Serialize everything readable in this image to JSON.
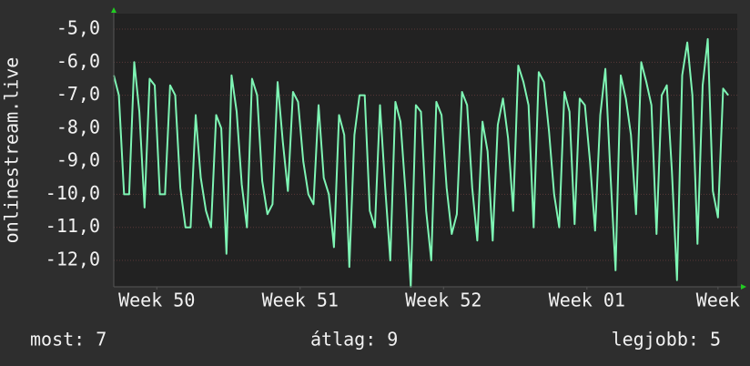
{
  "chart_data": {
    "type": "line",
    "y_label": "onlinestream.live",
    "x": [
      0,
      0.25,
      0.5,
      0.75,
      1,
      1.25,
      1.5,
      1.75,
      2,
      2.25,
      2.5,
      2.75,
      3,
      3.25,
      3.5,
      3.75,
      4,
      4.25,
      4.5,
      4.75,
      5,
      5.25,
      5.5,
      5.75,
      6,
      6.25,
      6.5,
      6.75,
      7,
      7.25,
      7.5,
      7.75,
      8,
      8.25,
      8.5,
      8.75,
      9,
      9.25,
      9.5,
      9.75,
      10,
      10.25,
      10.5,
      10.75,
      11,
      11.25,
      11.5,
      11.75,
      12,
      12.25,
      12.5,
      12.75,
      13,
      13.25,
      13.5,
      13.75,
      14,
      14.25,
      14.5,
      14.75,
      15,
      15.25,
      15.5,
      15.75,
      16,
      16.25,
      16.5,
      16.75,
      17,
      17.25,
      17.5,
      17.75,
      18,
      18.25,
      18.5,
      18.75,
      19,
      19.25,
      19.5,
      19.75,
      20,
      20.25,
      20.5,
      20.75,
      21,
      21.25,
      21.5,
      21.75,
      22,
      22.25,
      22.5,
      22.75,
      23,
      23.25,
      23.5,
      23.75,
      24,
      24.25,
      24.5,
      24.75,
      25,
      25.25,
      25.5,
      25.75,
      26,
      26.25,
      26.5,
      26.75,
      27,
      27.25,
      27.5,
      27.75,
      28,
      28.25,
      28.5,
      28.75,
      29,
      29.25,
      29.5,
      29.75,
      30
    ],
    "series": [
      {
        "color": "#7ef5b4",
        "values": [
          -6.4,
          -7,
          -10,
          -10,
          -6,
          -7.5,
          -10.4,
          -6.5,
          -6.7,
          -10,
          -10,
          -6.7,
          -7,
          -9.8,
          -11,
          -11,
          -7.6,
          -9.5,
          -10.5,
          -11,
          -7.6,
          -8,
          -11.8,
          -6.4,
          -7.5,
          -9.7,
          -11,
          -6.5,
          -7,
          -9.6,
          -10.6,
          -10.3,
          -6.6,
          -8.4,
          -9.9,
          -6.9,
          -7.2,
          -9,
          -10,
          -10.3,
          -7.3,
          -9.5,
          -10,
          -11.6,
          -7.6,
          -8.2,
          -12.2,
          -8.2,
          -7,
          -7,
          -10.5,
          -11,
          -7.3,
          -9.8,
          -12,
          -7.2,
          -7.8,
          -10,
          -12.8,
          -7.3,
          -7.5,
          -10.5,
          -12,
          -7.2,
          -7.6,
          -9.8,
          -11.2,
          -10.6,
          -6.9,
          -7.3,
          -9.8,
          -11.4,
          -7.8,
          -8.7,
          -11.4,
          -7.9,
          -7.1,
          -8.3,
          -10.5,
          -6.1,
          -6.6,
          -7.3,
          -11,
          -6.3,
          -6.6,
          -8.1,
          -10,
          -11,
          -6.9,
          -7.5,
          -10.9,
          -7.1,
          -7.3,
          -9,
          -11.1,
          -7.6,
          -6.2,
          -9.4,
          -12.3,
          -6.4,
          -7.1,
          -8.2,
          -10.6,
          -6,
          -6.6,
          -7.3,
          -11.2,
          -7,
          -6.7,
          -9.3,
          -12.6,
          -6.4,
          -5.4,
          -7,
          -11.5,
          -6.7,
          -5.3,
          -9.9,
          -10.7,
          -6.8,
          -7
        ]
      }
    ],
    "xlim": [
      0,
      30.44
    ],
    "xticks": [
      {
        "value": 2.1,
        "label": "Week 50"
      },
      {
        "value": 9.1,
        "label": "Week 51"
      },
      {
        "value": 16.1,
        "label": "Week 52"
      },
      {
        "value": 23.1,
        "label": "Week 01"
      },
      {
        "value": 29.5,
        "label": "Week"
      }
    ],
    "ylim": [
      -12.8,
      -4.53
    ],
    "yticks": [
      {
        "value": -5,
        "label": "-5,0"
      },
      {
        "value": -6,
        "label": "-6,0"
      },
      {
        "value": -7,
        "label": "-7,0"
      },
      {
        "value": -8,
        "label": "-8,0"
      },
      {
        "value": -9,
        "label": "-9,0"
      },
      {
        "value": -10,
        "label": "-10,0"
      },
      {
        "value": -11,
        "label": "-11,0"
      },
      {
        "value": -12,
        "label": "-12,0"
      }
    ],
    "grid": true
  },
  "footer": [
    "most: 7",
    "átlag: 9",
    "legjobb: 5"
  ]
}
